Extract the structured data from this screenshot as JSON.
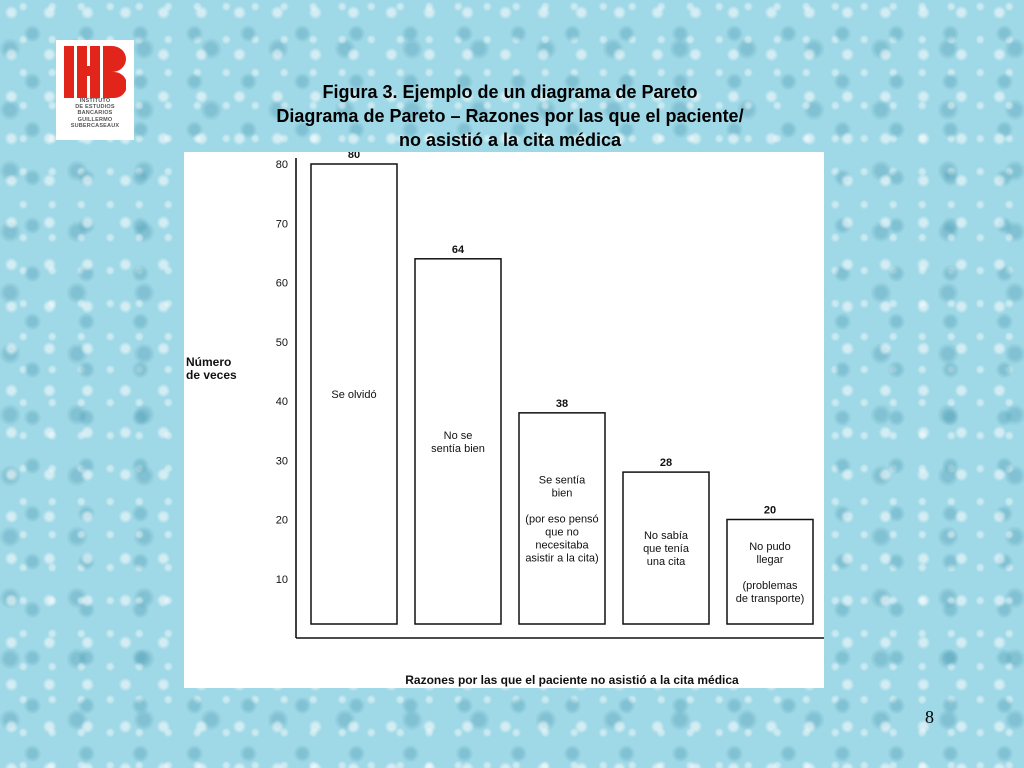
{
  "slide": {
    "title_line1": "Figura 3. Ejemplo de un diagrama de Pareto",
    "title_line2": "Diagrama de Pareto – Razones por las que el paciente/",
    "title_line3": "no asistió a la cita médica",
    "page_number": "8",
    "background_color": "#9fd8e6"
  },
  "logo": {
    "lines": [
      "INSTITUTO",
      "DE ESTUDIOS",
      "BANCARIOS",
      "GUILLERMO",
      "SUBERCASEAUX"
    ],
    "color": "#e1251b"
  },
  "chart_data": {
    "type": "bar",
    "ylabel": [
      "Número",
      "de veces"
    ],
    "xlabel": "Razones por las que el paciente no asistió a la cita médica",
    "ylim": [
      0,
      80
    ],
    "yticks": [
      10,
      20,
      30,
      40,
      50,
      60,
      70,
      80
    ],
    "grid": false,
    "legend": "none",
    "categories": [
      [
        "Se olvidó"
      ],
      [
        "No se",
        "sentía bien"
      ],
      [
        "Se sentía",
        "bien",
        "",
        "(por eso pensó",
        "que no",
        "necesitaba",
        "asistir a la cita)"
      ],
      [
        "No sabía",
        "que tenía",
        "una cita"
      ],
      [
        "No pudo",
        "llegar",
        "",
        "(problemas",
        "de transporte)"
      ]
    ],
    "values": [
      80,
      64,
      38,
      28,
      20
    ],
    "bar_fill": "#ffffff",
    "bar_stroke": "#111111"
  }
}
